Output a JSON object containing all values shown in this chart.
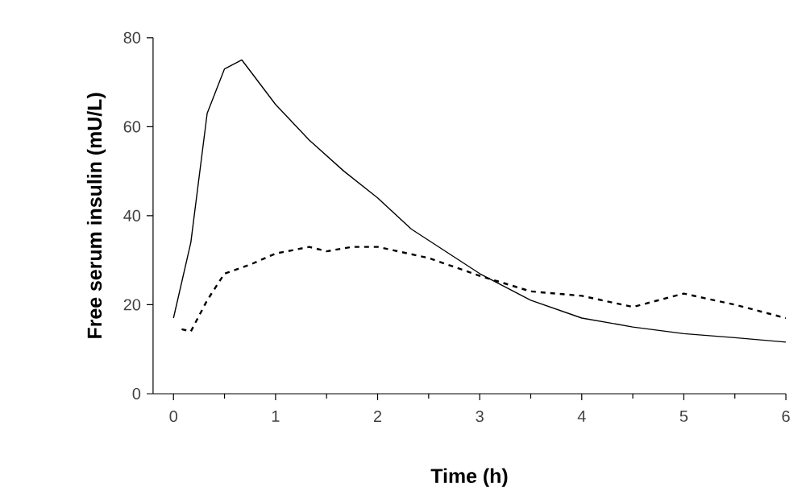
{
  "chart_data": {
    "type": "line",
    "xlabel": "Time (h)",
    "ylabel": "Free serum insulin (mU/L)",
    "xlim": [
      -0.2,
      6
    ],
    "ylim": [
      0,
      80
    ],
    "xticks": [
      0,
      1,
      2,
      3,
      4,
      5,
      6
    ],
    "yticks": [
      0,
      20,
      40,
      60,
      80
    ],
    "grid": false,
    "marker": "none",
    "series": [
      {
        "color": "#000000",
        "line_style": "solid",
        "x": [
          0,
          0.17,
          0.33,
          0.5,
          0.67,
          1,
          1.33,
          1.67,
          2,
          2.33,
          3,
          3.5,
          4,
          4.5,
          5,
          5.5,
          6
        ],
        "values": [
          17,
          34,
          63,
          73,
          75,
          65,
          57,
          50,
          44,
          37,
          27,
          21,
          17,
          15,
          13.5,
          12.6,
          11.6
        ]
      },
      {
        "color": "#000000",
        "line_style": "dashed",
        "x": [
          0.08,
          0.17,
          0.33,
          0.5,
          0.75,
          1,
          1.33,
          1.5,
          1.75,
          2,
          2.5,
          3,
          3.5,
          4,
          4.5,
          5,
          5.5,
          6
        ],
        "values": [
          14.5,
          14,
          21,
          27,
          29,
          31.5,
          33,
          32,
          33,
          33,
          30.5,
          26.5,
          23,
          22,
          19.5,
          22.5,
          20,
          17
        ]
      }
    ]
  }
}
